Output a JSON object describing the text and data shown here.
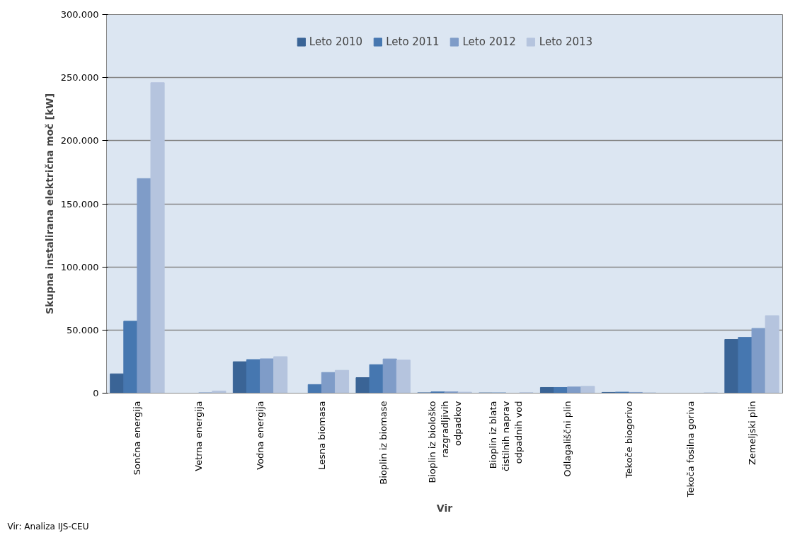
{
  "chart_data": {
    "type": "bar",
    "xlabel": "Vir",
    "ylabel": "Skupna instalirana električna moč [kW]",
    "categories": [
      "Sončna energija",
      "Vetrna energija",
      "Vodna energija",
      "Lesna biomasa",
      "Bioplin iz biomase",
      "Bioplin iz biološko razgradljivih odpadkov",
      "Bioplin iz blata čistilnih naprav odpadnih vod",
      "Odlagališčni plin",
      "Tekoče biogorivo",
      "Tekoča fosilna goriva",
      "Zemeljski plin"
    ],
    "series": [
      {
        "name": "Leto 2010",
        "color": "#3a6496",
        "values": [
          15300,
          0,
          24900,
          0,
          12300,
          300,
          200,
          4500,
          600,
          0,
          42600
        ]
      },
      {
        "name": "Leto 2011",
        "color": "#4677b0",
        "values": [
          57000,
          0,
          26600,
          6800,
          22600,
          1000,
          200,
          4500,
          800,
          0,
          44200
        ]
      },
      {
        "name": "Leto 2012",
        "color": "#7f9cc8",
        "values": [
          170000,
          300,
          27200,
          16400,
          27100,
          1000,
          null,
          4900,
          600,
          null,
          51300
        ]
      },
      {
        "name": "Leto 2013",
        "color": "#b5c4de",
        "values": [
          246000,
          1700,
          28900,
          18100,
          26200,
          800,
          400,
          5400,
          300,
          300,
          61400
        ]
      }
    ],
    "ylim": [
      0,
      300000
    ],
    "yticks": [
      0,
      {
        "value": 50000,
        "label": "50.000"
      },
      {
        "value": 100000,
        "label": "100.000"
      },
      {
        "value": 150000,
        "label": "150.000"
      },
      {
        "value": 200000,
        "label": "200.000"
      },
      {
        "value": 250000,
        "label": "250.000"
      },
      {
        "value": 300000,
        "label": "300.000"
      }
    ],
    "grid": "y",
    "legend": "top",
    "annotations": [
      "Vir: Analiza IJS-CEU"
    ]
  }
}
